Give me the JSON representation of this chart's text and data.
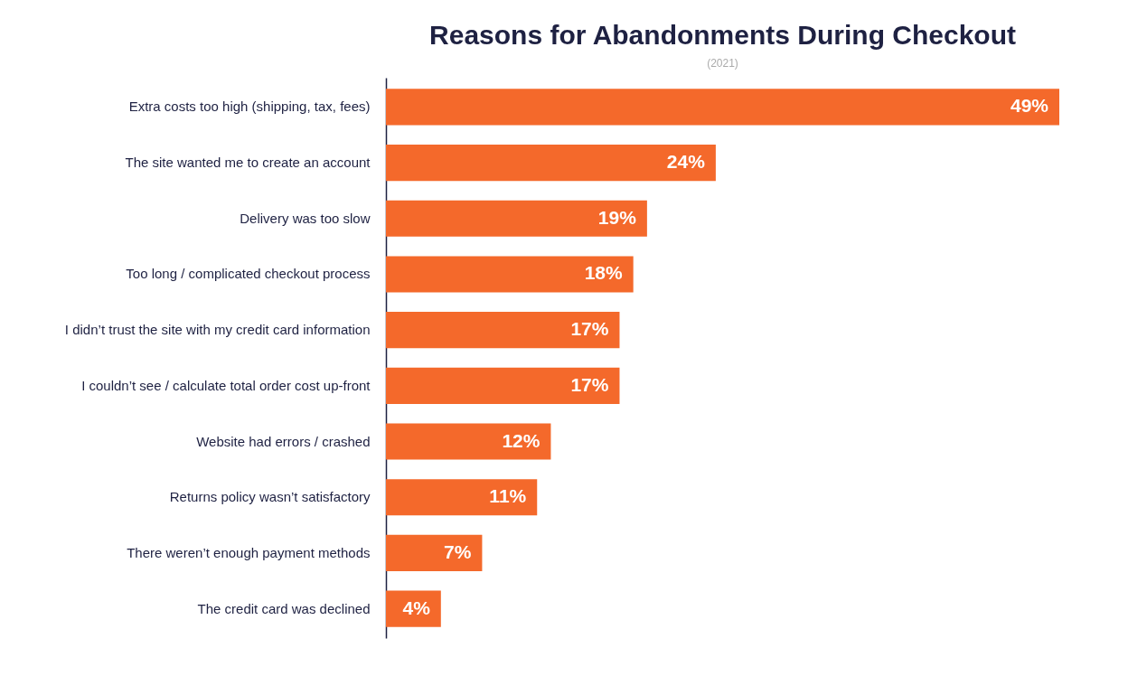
{
  "chart_data": {
    "type": "bar",
    "orientation": "horizontal",
    "title": "Reasons for Abandonments During Checkout",
    "annotations": [
      "(2021)"
    ],
    "categories": [
      "Extra costs too high (shipping, tax, fees)",
      "The site wanted me to create an account",
      "Delivery was too slow",
      "Too long / complicated checkout process",
      "I didn’t trust the site with my credit card information",
      "I couldn’t see / calculate total order cost up-front",
      "Website had errors / crashed",
      "Returns policy wasn’t satisfactory",
      "There weren’t enough payment methods",
      "The credit card was declined"
    ],
    "values": [
      49,
      24,
      19,
      18,
      17,
      17,
      12,
      11,
      7,
      4
    ],
    "value_labels": [
      "49%",
      "24%",
      "19%",
      "18%",
      "17%",
      "17%",
      "12%",
      "11%",
      "7%",
      "4%"
    ],
    "color": "#f4692b",
    "tick_labels": "y"
  }
}
